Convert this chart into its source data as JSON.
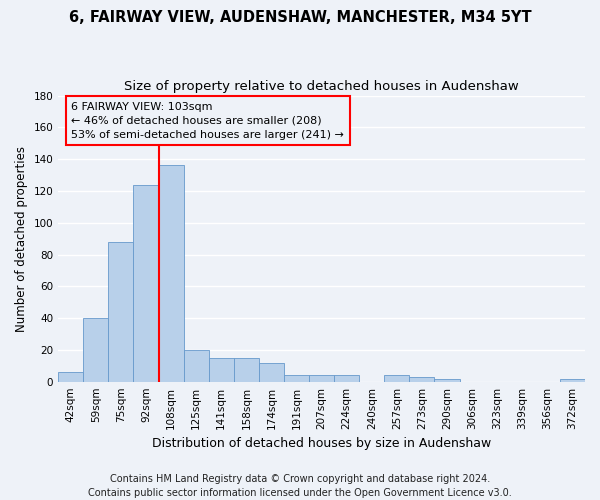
{
  "title": "6, FAIRWAY VIEW, AUDENSHAW, MANCHESTER, M34 5YT",
  "subtitle": "Size of property relative to detached houses in Audenshaw",
  "xlabel": "Distribution of detached houses by size in Audenshaw",
  "ylabel": "Number of detached properties",
  "bar_labels": [
    "42sqm",
    "59sqm",
    "75sqm",
    "92sqm",
    "108sqm",
    "125sqm",
    "141sqm",
    "158sqm",
    "174sqm",
    "191sqm",
    "207sqm",
    "224sqm",
    "240sqm",
    "257sqm",
    "273sqm",
    "290sqm",
    "306sqm",
    "323sqm",
    "339sqm",
    "356sqm",
    "372sqm"
  ],
  "bar_values": [
    6,
    40,
    88,
    124,
    136,
    20,
    15,
    15,
    12,
    4,
    4,
    4,
    0,
    4,
    3,
    2,
    0,
    0,
    0,
    0,
    2
  ],
  "bar_color": "#b8d0ea",
  "bar_edgecolor": "#6699cc",
  "vline_x_index": 4,
  "vline_color": "red",
  "annotation_line1": "6 FAIRWAY VIEW: 103sqm",
  "annotation_line2": "← 46% of detached houses are smaller (208)",
  "annotation_line3": "53% of semi-detached houses are larger (241) →",
  "annotation_box_color": "red",
  "ylim": [
    0,
    180
  ],
  "yticks": [
    0,
    20,
    40,
    60,
    80,
    100,
    120,
    140,
    160,
    180
  ],
  "footer_line1": "Contains HM Land Registry data © Crown copyright and database right 2024.",
  "footer_line2": "Contains public sector information licensed under the Open Government Licence v3.0.",
  "background_color": "#eef2f8",
  "grid_color": "#ffffff",
  "title_fontsize": 10.5,
  "subtitle_fontsize": 9.5,
  "annotation_fontsize": 8,
  "footer_fontsize": 7,
  "tick_fontsize": 7.5,
  "ylabel_fontsize": 8.5,
  "xlabel_fontsize": 9
}
